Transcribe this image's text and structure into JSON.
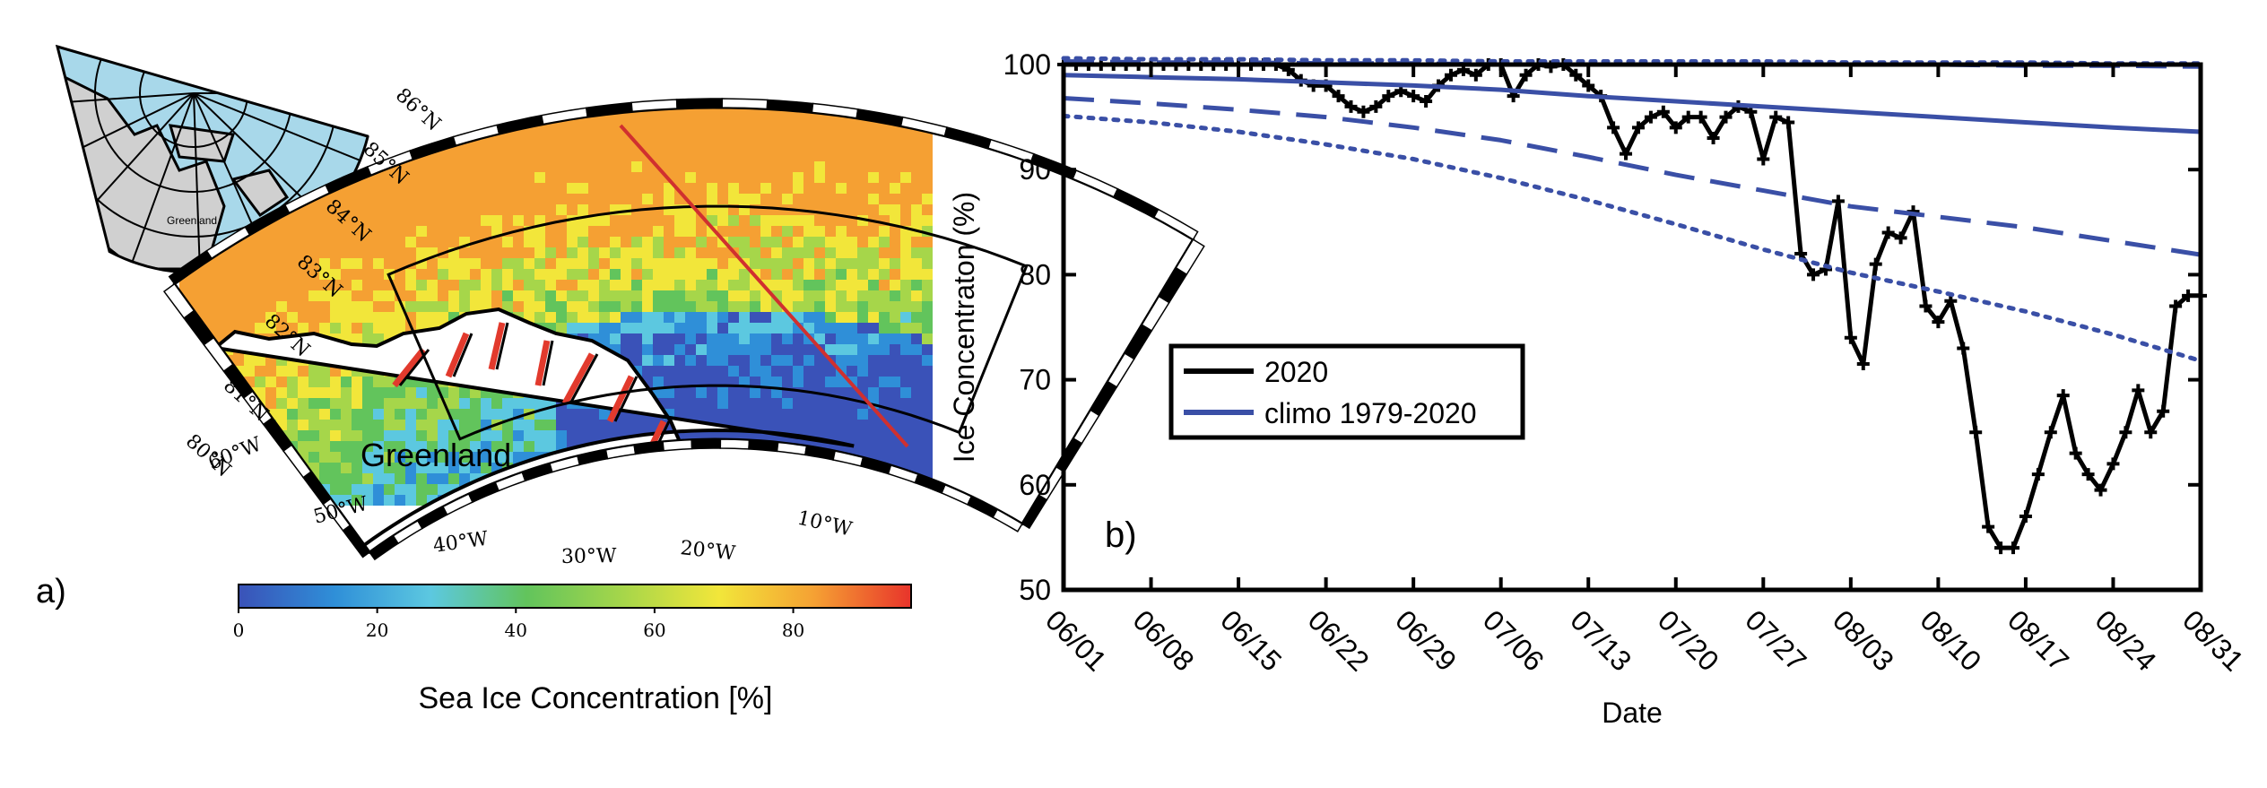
{
  "panel_a": {
    "label": "a)",
    "map_label": "Greenland",
    "inset_label": "Greenland",
    "lat_labels": [
      "86°N",
      "85°N",
      "84°N",
      "83°N",
      "82°N",
      "81°N",
      "80°N"
    ],
    "lon_labels": [
      "60°W",
      "50°W",
      "40°W",
      "30°W",
      "20°W",
      "10°W"
    ],
    "colorbar": {
      "label": "Sea Ice Concentration [%]",
      "ticks": [
        "0",
        "20",
        "40",
        "60",
        "80"
      ],
      "colors": [
        "#3a52b8",
        "#2f8fd8",
        "#5cc8e0",
        "#62c45c",
        "#a6d64a",
        "#f2e63a",
        "#f5a033",
        "#e8342b"
      ]
    },
    "palette": {
      "ocean_inset": "#a8d8ea",
      "land_inset": "#d0d0d0",
      "ice_low": "#3f5fc8",
      "ice_mid": "#3cbf6a",
      "ice_high": "#e23a2d",
      "transect": "#d0302f"
    }
  },
  "chart_data": {
    "type": "line",
    "panel_label": "b)",
    "xlabel": "Date",
    "ylabel": "Ice Concentraton (%)",
    "ylim": [
      50,
      100
    ],
    "yticks": [
      50,
      60,
      70,
      80,
      90,
      100
    ],
    "x_range": [
      "06/01",
      "08/31"
    ],
    "xticks": [
      "06/01",
      "06/08",
      "06/15",
      "06/22",
      "06/29",
      "07/06",
      "07/13",
      "07/20",
      "07/27",
      "08/03",
      "08/10",
      "08/17",
      "08/24",
      "08/31"
    ],
    "legend": {
      "placement": "center-left",
      "entries": [
        {
          "label": "2020",
          "color": "#000000"
        },
        {
          "label": "climo 1979-2020",
          "color": "#3a4fa6"
        }
      ]
    },
    "series": [
      {
        "name": "2020",
        "color": "#000000",
        "style": "solid-plus",
        "x": [
          "06/01",
          "06/02",
          "06/03",
          "06/04",
          "06/05",
          "06/06",
          "06/07",
          "06/08",
          "06/09",
          "06/10",
          "06/11",
          "06/12",
          "06/13",
          "06/14",
          "06/15",
          "06/16",
          "06/17",
          "06/18",
          "06/19",
          "06/20",
          "06/21",
          "06/22",
          "06/23",
          "06/24",
          "06/25",
          "06/26",
          "06/27",
          "06/28",
          "06/29",
          "06/30",
          "07/01",
          "07/02",
          "07/03",
          "07/04",
          "07/05",
          "07/06",
          "07/07",
          "07/08",
          "07/09",
          "07/10",
          "07/11",
          "07/12",
          "07/13",
          "07/14",
          "07/15",
          "07/16",
          "07/17",
          "07/18",
          "07/19",
          "07/20",
          "07/21",
          "07/22",
          "07/23",
          "07/24",
          "07/25",
          "07/26",
          "07/27",
          "07/28",
          "07/29",
          "07/30",
          "07/31",
          "08/01",
          "08/02",
          "08/03",
          "08/04",
          "08/05",
          "08/06",
          "08/07",
          "08/08",
          "08/09",
          "08/10",
          "08/11",
          "08/12",
          "08/13",
          "08/14",
          "08/15",
          "08/16",
          "08/17",
          "08/18",
          "08/19",
          "08/20",
          "08/21",
          "08/22",
          "08/23",
          "08/24",
          "08/25",
          "08/26",
          "08/27",
          "08/28",
          "08/29",
          "08/30",
          "08/31"
        ],
        "y": [
          100,
          100,
          100,
          100,
          100,
          100,
          100,
          100,
          100,
          100,
          100,
          100,
          100,
          100,
          100,
          100,
          100,
          100,
          99.5,
          98.5,
          98,
          98,
          97,
          96,
          95.5,
          96,
          97,
          97.5,
          97,
          96.5,
          98,
          99,
          99.5,
          99,
          100,
          100,
          97,
          99,
          100,
          99.8,
          100,
          99,
          98,
          97,
          94,
          91.5,
          94,
          95,
          95.5,
          94,
          95,
          95,
          93,
          95,
          96,
          95.5,
          91,
          95,
          94.5,
          82,
          80,
          80.5,
          87,
          74,
          71.5,
          81,
          84,
          83.5,
          86,
          77,
          75.5,
          77.5,
          73,
          65,
          56,
          54,
          54,
          57,
          61,
          65,
          68.5,
          63,
          61,
          59.5,
          62,
          65,
          69,
          65,
          67,
          77,
          78,
          78
        ]
      },
      {
        "name": "",
        "color": "#3a4fa6",
        "style": "solid",
        "x": [
          "06/01",
          "06/08",
          "06/15",
          "06/22",
          "06/29",
          "07/06",
          "07/13",
          "07/20",
          "07/27",
          "08/03",
          "08/10",
          "08/17",
          "08/24",
          "08/31"
        ],
        "y": [
          99,
          98.8,
          98.6,
          98.3,
          98,
          97.6,
          97,
          96.5,
          96,
          95.5,
          95,
          94.5,
          94,
          93.6
        ]
      },
      {
        "name": "",
        "color": "#3a4fa6",
        "style": "dashed",
        "x": [
          "06/01",
          "06/08",
          "06/15",
          "06/22",
          "06/29",
          "07/06",
          "07/13",
          "07/20",
          "07/27",
          "08/03",
          "08/10",
          "08/17",
          "08/24",
          "08/31"
        ],
        "y": [
          96.8,
          96.3,
          95.7,
          95,
          94,
          92.8,
          91.2,
          89.5,
          88,
          86.5,
          85.5,
          84.5,
          83.2,
          81.9
        ]
      },
      {
        "name": "",
        "color": "#3a4fa6",
        "style": "dotted",
        "x": [
          "06/01",
          "06/08",
          "06/15",
          "06/22",
          "06/29",
          "07/06",
          "07/13",
          "07/20",
          "07/27",
          "08/03",
          "08/10",
          "08/17",
          "08/24",
          "08/31"
        ],
        "y": [
          95.1,
          94.5,
          93.6,
          92.4,
          91,
          89.2,
          87.1,
          84.8,
          82.4,
          80.2,
          78.4,
          76.5,
          74.3,
          71.8
        ]
      },
      {
        "name": "",
        "color": "#3a4fa6",
        "style": "dashed",
        "x": [
          "06/01",
          "06/08",
          "06/15",
          "06/22",
          "06/29",
          "07/06",
          "07/13",
          "07/20",
          "07/27",
          "08/03",
          "08/10",
          "08/17",
          "08/24",
          "08/31"
        ],
        "y": [
          100.3,
          100.2,
          100.2,
          100.1,
          100.1,
          100,
          100,
          100,
          100,
          100,
          100,
          99.9,
          99.9,
          99.8
        ]
      },
      {
        "name": "",
        "color": "#3a4fa6",
        "style": "dotted",
        "x": [
          "06/01",
          "06/08",
          "06/15",
          "06/22",
          "06/29",
          "07/06",
          "07/13",
          "07/20",
          "07/27",
          "08/03",
          "08/10",
          "08/17",
          "08/24",
          "08/31"
        ],
        "y": [
          100.6,
          100.5,
          100.5,
          100.4,
          100.4,
          100.3,
          100.3,
          100.3,
          100.3,
          100.2,
          100.2,
          100.2,
          100.1,
          100.1
        ]
      }
    ]
  }
}
